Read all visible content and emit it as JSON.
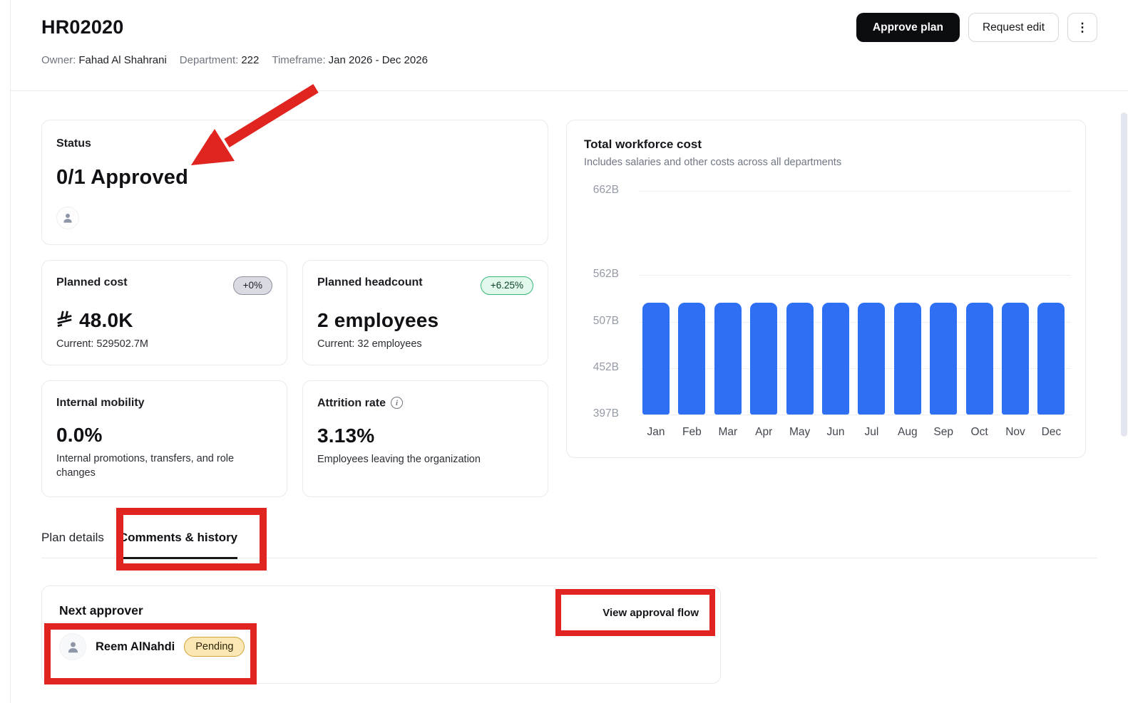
{
  "header": {
    "title": "HR02020",
    "meta": [
      {
        "label": "Owner:",
        "value": "Fahad Al Shahrani"
      },
      {
        "label": "Department:",
        "value": "222"
      },
      {
        "label": "Timeframe:",
        "value": "Jan 2026 - Dec 2026"
      }
    ],
    "actions": {
      "approve_label": "Approve plan",
      "request_edit_label": "Request edit",
      "menu_icon": "kebab-menu-icon",
      "menu_glyph": "⋮"
    }
  },
  "status_card": {
    "title": "Status",
    "value": "0/1 Approved",
    "icon": "user-icon"
  },
  "metric_cards": [
    {
      "title": "Planned cost",
      "badge": "+0%",
      "badge_type": "neutral",
      "currency_icon": "saudi-riyal-icon",
      "value": "48.0K",
      "subtext": "Current: 529502.7M"
    },
    {
      "title": "Planned headcount",
      "badge": "+6.25%",
      "badge_type": "positive",
      "value": "2 employees",
      "subtext": "Current: 32 employees"
    },
    {
      "title": "Internal mobility",
      "value": "0.0%",
      "subtext": "Internal promotions, transfers, and role changes"
    },
    {
      "title": "Attrition rate",
      "info_icon": "info-icon",
      "info_glyph": "i",
      "value": "3.13%",
      "subtext": "Employees leaving the organization"
    }
  ],
  "chart_data": {
    "type": "bar",
    "title": "Total workforce cost",
    "subtitle": "Includes salaries and other costs across all departments",
    "categories": [
      "Jan",
      "Feb",
      "Mar",
      "Apr",
      "May",
      "Jun",
      "Jul",
      "Aug",
      "Sep",
      "Oct",
      "Nov",
      "Dec"
    ],
    "values": [
      529.5,
      529.5,
      529.5,
      529.5,
      529.5,
      529.5,
      529.5,
      529.5,
      529.5,
      529.5,
      529.5,
      529.5
    ],
    "unit": "B",
    "y_ticks": [
      {
        "label": "662B",
        "value": 662
      },
      {
        "label": "562B",
        "value": 562
      },
      {
        "label": "507B",
        "value": 507
      },
      {
        "label": "452B",
        "value": 452
      },
      {
        "label": "397B",
        "value": 397
      }
    ],
    "ylim": [
      397,
      662
    ],
    "grid": true,
    "legend": false,
    "bar_color": "#2e6ff3",
    "xlabel": "",
    "ylabel": ""
  },
  "tabs": [
    {
      "label": "Plan details",
      "active": false
    },
    {
      "label": "Comments & history",
      "active": true
    }
  ],
  "approver_card": {
    "title": "Next approver",
    "action_label": "View approval flow",
    "approver": {
      "name": "Reem AlNahdi",
      "status": "Pending",
      "icon": "user-icon"
    }
  },
  "colors": {
    "accent_blue": "#2e6ff3",
    "annotation_red": "#e0241f",
    "pending_bg": "#fbe7b4",
    "pending_border": "#d2a235",
    "positive_badge_border": "#37b877",
    "dark_button_bg": "#0c0d11"
  }
}
